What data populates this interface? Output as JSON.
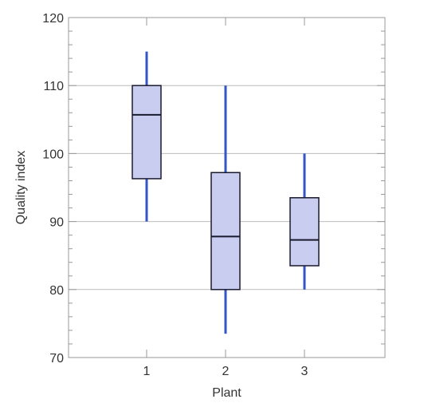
{
  "chart_data": {
    "type": "box",
    "title": "",
    "xlabel": "Plant",
    "ylabel": "Quality index",
    "categories": [
      "1",
      "2",
      "3"
    ],
    "ylim": [
      70,
      120
    ],
    "yticks": [
      70,
      80,
      90,
      100,
      110,
      120
    ],
    "grid": true,
    "boxes": [
      {
        "category": "1",
        "whisker_low": 90,
        "q1": 96.3,
        "median": 105.7,
        "q3": 110,
        "whisker_high": 115
      },
      {
        "category": "2",
        "whisker_low": 73.5,
        "q1": 80,
        "median": 87.8,
        "q3": 97.2,
        "whisker_high": 110
      },
      {
        "category": "3",
        "whisker_low": 80,
        "q1": 83.5,
        "median": 87.3,
        "q3": 93.5,
        "whisker_high": 100
      }
    ]
  },
  "colors": {
    "box_fill": "#c9cdf0",
    "box_stroke": "#1a1a2e",
    "whisker": "#3356c4",
    "grid": "#bbbbbb",
    "minor_tick": "#999999",
    "frame": "#999999"
  }
}
